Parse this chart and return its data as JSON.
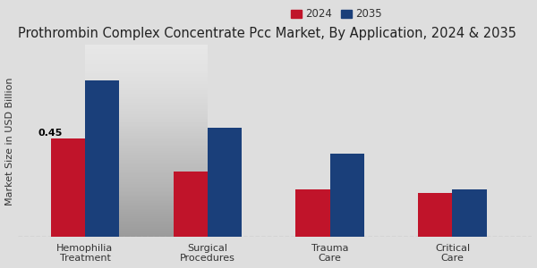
{
  "title": "Prothrombin Complex Concentrate Pcc Market, By Application, 2024 & 2035",
  "ylabel": "Market Size in USD Billion",
  "categories": [
    "Hemophilia\nTreatment",
    "Surgical\nProcedures",
    "Trauma\nCare",
    "Critical\nCare"
  ],
  "values_2024": [
    0.45,
    0.3,
    0.22,
    0.2
  ],
  "values_2035": [
    0.72,
    0.5,
    0.38,
    0.22
  ],
  "color_2024": "#c0142a",
  "color_2035": "#1a3f7a",
  "annotation_text": "0.45",
  "annotation_bar": 0,
  "legend_2024": "2024",
  "legend_2035": "2035",
  "bar_width": 0.28,
  "background_color_top": "#e0e0e0",
  "background_color_bottom": "#d0d0d0",
  "title_fontsize": 10.5,
  "axis_label_fontsize": 8,
  "tick_fontsize": 8,
  "legend_fontsize": 8.5,
  "ylim": [
    0,
    0.88
  ]
}
